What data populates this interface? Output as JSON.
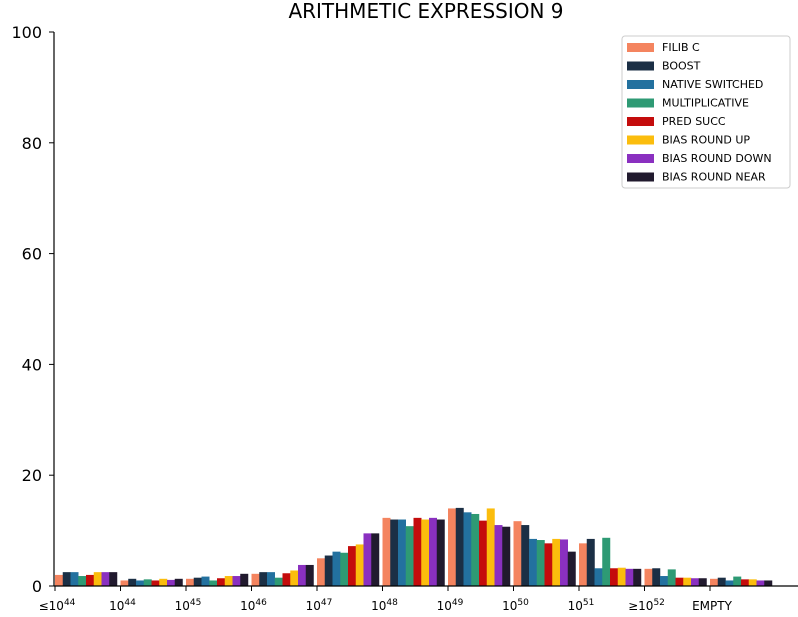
{
  "chart_data": {
    "type": "bar",
    "title": "ARITHMETIC EXPRESSION 9",
    "xlabel": "",
    "ylabel": "",
    "ylim": [
      0,
      100
    ],
    "yticks": [
      "0",
      "20",
      "40",
      "60",
      "80",
      "100"
    ],
    "grid": false,
    "legend_position": "top-right",
    "categories": [
      {
        "base": "≤10",
        "exp": "44"
      },
      {
        "base": "10",
        "exp": "44"
      },
      {
        "base": "10",
        "exp": "45"
      },
      {
        "base": "10",
        "exp": "46"
      },
      {
        "base": "10",
        "exp": "47"
      },
      {
        "base": "10",
        "exp": "48"
      },
      {
        "base": "10",
        "exp": "49"
      },
      {
        "base": "10",
        "exp": "50"
      },
      {
        "base": "10",
        "exp": "51"
      },
      {
        "base": "≥10",
        "exp": "52"
      },
      {
        "base": "EMPTY",
        "exp": ""
      }
    ],
    "series": [
      {
        "name": "FILIB C",
        "color": "#f4845f",
        "values": [
          2.0,
          1.0,
          1.3,
          2.2,
          5.0,
          12.3,
          14.0,
          11.7,
          7.7,
          3.1,
          1.3
        ]
      },
      {
        "name": "BOOST",
        "color": "#1b2f45",
        "values": [
          2.5,
          1.3,
          1.5,
          2.5,
          5.5,
          12.0,
          14.1,
          11.0,
          8.5,
          3.2,
          1.5
        ]
      },
      {
        "name": "NATIVE SWITCHED",
        "color": "#23719f",
        "values": [
          2.5,
          1.0,
          1.7,
          2.5,
          6.2,
          12.0,
          13.3,
          8.5,
          3.2,
          1.8,
          1.0
        ]
      },
      {
        "name": "MULTIPLICATIVE",
        "color": "#2e9a74",
        "values": [
          1.8,
          1.2,
          1.0,
          1.5,
          6.0,
          10.8,
          13.0,
          8.3,
          8.7,
          3.0,
          1.7
        ]
      },
      {
        "name": "PRED SUCC",
        "color": "#c40c0c",
        "values": [
          2.0,
          1.0,
          1.4,
          2.3,
          7.2,
          12.3,
          11.8,
          7.7,
          3.2,
          1.5,
          1.2
        ]
      },
      {
        "name": "BIAS ROUND UP",
        "color": "#fbbd0d",
        "values": [
          2.5,
          1.3,
          1.8,
          2.8,
          7.5,
          12.0,
          14.0,
          8.5,
          3.3,
          1.5,
          1.2
        ]
      },
      {
        "name": "BIAS ROUND DOWN",
        "color": "#8a30c0",
        "values": [
          2.5,
          1.1,
          1.8,
          3.8,
          9.5,
          12.3,
          11.0,
          8.4,
          3.1,
          1.4,
          1.0
        ]
      },
      {
        "name": "BIAS ROUND NEAR",
        "color": "#211a2e",
        "values": [
          2.5,
          1.3,
          2.2,
          3.8,
          9.5,
          12.0,
          10.7,
          6.2,
          3.1,
          1.4,
          1.0
        ]
      }
    ]
  }
}
